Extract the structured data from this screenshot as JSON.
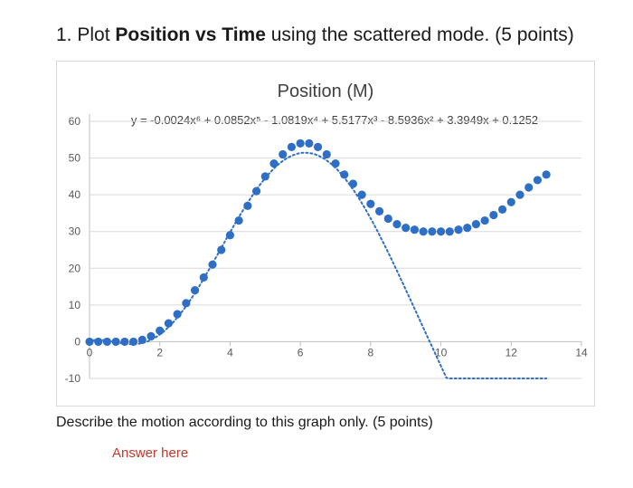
{
  "question": {
    "number": "1.",
    "prefix": "Plot",
    "bold": "Position vs Time",
    "suffix": "using the scattered mode. (5 points)"
  },
  "describe_text": "Describe the motion according to this graph only. (5 points)",
  "answer_placeholder": "Answer here",
  "chart_data": {
    "type": "scatter",
    "title": "Position (M)",
    "equation": "y = -0.0024x⁶ + 0.0852x⁵ - 1.0819x⁴ + 5.5177x³ - 8.5936x² + 3.3949x + 0.1252",
    "xlabel": "",
    "ylabel": "",
    "xlim": [
      0,
      14
    ],
    "ylim": [
      -10,
      60
    ],
    "x_ticks": [
      "0",
      "2",
      "4",
      "6",
      "8",
      "10",
      "12",
      "14"
    ],
    "y_ticks": [
      "60",
      "50",
      "40",
      "30",
      "20",
      "10",
      "0",
      "-10"
    ],
    "grid": "horizontal",
    "marker_color": "#2e6fc5",
    "trendline_color": "#2e6fc5",
    "trendline": "polynomial order 6 (dotted)",
    "series": [
      {
        "x": [
          0,
          0.25,
          0.5,
          0.75,
          1,
          1.25,
          1.5,
          1.75,
          2,
          2.25,
          2.5,
          2.75,
          3,
          3.25,
          3.5,
          3.75,
          4,
          4.25,
          4.5,
          4.75,
          5,
          5.25,
          5.5,
          5.75,
          6,
          6.25,
          6.5,
          6.75,
          7,
          7.25,
          7.5,
          7.75,
          8,
          8.25,
          8.5,
          8.75,
          9,
          9.25,
          9.5,
          9.75,
          10,
          10.25,
          10.5,
          10.75,
          11,
          11.25,
          11.5,
          11.75,
          12,
          12.25,
          12.5,
          12.75,
          13
        ],
        "y": [
          0,
          0,
          0,
          0,
          0,
          0,
          0.5,
          1.5,
          3,
          5,
          7.5,
          10.5,
          14,
          17.5,
          21,
          25,
          29,
          33,
          37,
          41,
          45,
          48.5,
          51,
          53,
          54,
          54,
          53,
          51,
          48.5,
          45.5,
          43,
          40,
          37.5,
          35.5,
          33.5,
          32,
          31,
          30.5,
          30,
          30,
          30,
          30,
          30.5,
          31,
          32,
          33,
          34.5,
          36,
          38,
          40,
          42,
          44,
          45.5
        ]
      }
    ]
  }
}
